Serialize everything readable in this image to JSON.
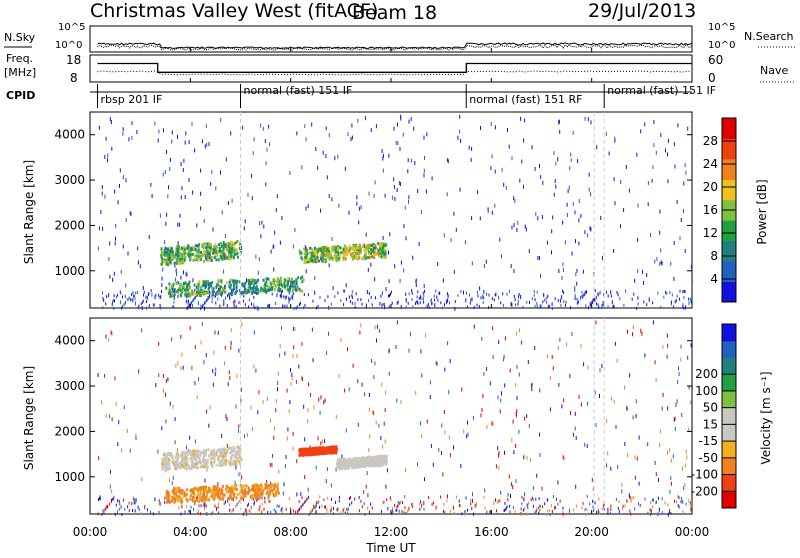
{
  "header": {
    "title": "Christmas Valley West (fitACF)",
    "beam": "Beam 18",
    "date": "29/Jul/2013"
  },
  "panel_labels": {
    "nsky": "N.Sky",
    "freq": "Freq.",
    "freq_unit": "[MHz]",
    "cpid": "CPID",
    "nsearch": "N.Search",
    "nave": "Nave"
  },
  "cpid_programs": [
    {
      "label": "rbsp 201 IF",
      "start": 0.3,
      "end": 6.0
    },
    {
      "label": "normal (fast) 151 IF",
      "start": 6.0,
      "end": 15.0
    },
    {
      "label": "normal (fast) 151 RF",
      "start": 15.0,
      "end": 20.5
    },
    {
      "label": "normal (fast) 151 IF",
      "start": 20.5,
      "end": 24.0
    }
  ],
  "colors": {
    "power": [
      "#1010e0",
      "#2060c0",
      "#208080",
      "#20a040",
      "#80c040",
      "#f0c020",
      "#f08020",
      "#f04010",
      "#e00000"
    ],
    "velocity": [
      "#e00000",
      "#f04010",
      "#f08020",
      "#f0b020",
      "#c8c8c0",
      "#c8c8c0",
      "#80c040",
      "#20a040",
      "#208080",
      "#2060c0",
      "#1010e0"
    ]
  },
  "chart_data": [
    {
      "type": "line",
      "name": "noise",
      "ylabel": "N.Sky",
      "ylabel_right": "N.Search",
      "yticks_left": [
        "10^5",
        "10^0"
      ],
      "yticks_right": [
        "10^5",
        "10^0"
      ],
      "x_range": [
        0,
        24
      ]
    },
    {
      "type": "line",
      "name": "frequency",
      "ylabel": "Freq. [MHz]",
      "ylabel_right": "Nave",
      "yticks_left": [
        "18",
        "8"
      ],
      "yticks_right": [
        "60",
        "0"
      ],
      "ylim": [
        8,
        18
      ],
      "freq_steps": [
        {
          "start": 0.3,
          "end": 2.7,
          "value": 15.5
        },
        {
          "start": 2.7,
          "end": 15.0,
          "value": 11.5
        },
        {
          "start": 15.0,
          "end": 20.5,
          "value": 15.5
        },
        {
          "start": 20.5,
          "end": 24.0,
          "value": 15.5
        }
      ]
    },
    {
      "type": "heatmap",
      "name": "power",
      "ylabel": "Slant Range [km]",
      "yticks": [
        1000,
        2000,
        3000,
        4000
      ],
      "ylim": [
        180,
        4500
      ],
      "x_range": [
        0,
        24
      ],
      "colorbar_label": "Power [dB]",
      "colorbar_ticks": [
        4,
        8,
        12,
        16,
        20,
        24,
        28
      ],
      "colorbar_range": [
        0,
        32
      ],
      "features": [
        {
          "x0": 2.8,
          "x1": 6.0,
          "r0": 1150,
          "r1": 1700,
          "value": 12
        },
        {
          "x0": 3.0,
          "x1": 8.5,
          "r0": 450,
          "r1": 900,
          "value": 10
        },
        {
          "x0": 8.3,
          "x1": 11.8,
          "r0": 1200,
          "r1": 1650,
          "value": 14
        }
      ]
    },
    {
      "type": "heatmap",
      "name": "velocity",
      "xlabel": "Time UT",
      "ylabel": "Slant Range [km]",
      "yticks": [
        1000,
        2000,
        3000,
        4000
      ],
      "ylim": [
        180,
        4500
      ],
      "x_range": [
        0,
        24
      ],
      "xtick_labels": [
        "00:00",
        "04:00",
        "08:00",
        "12:00",
        "16:00",
        "20:00",
        "00:00"
      ],
      "colorbar_label": "Velocity [m s⁻¹]",
      "colorbar_ticks": [
        -200,
        -100,
        -50,
        -15,
        15,
        50,
        100,
        200
      ],
      "features": [
        {
          "x0": 2.8,
          "x1": 6.0,
          "r0": 1150,
          "r1": 1700,
          "value": 0
        },
        {
          "x0": 3.0,
          "x1": 7.5,
          "r0": 450,
          "r1": 900,
          "value": -60
        },
        {
          "x0": 8.3,
          "x1": 9.8,
          "r0": 1500,
          "r1": 1700,
          "value": -120
        },
        {
          "x0": 9.8,
          "x1": 11.8,
          "r0": 1200,
          "r1": 1500,
          "value": 30
        }
      ]
    }
  ]
}
